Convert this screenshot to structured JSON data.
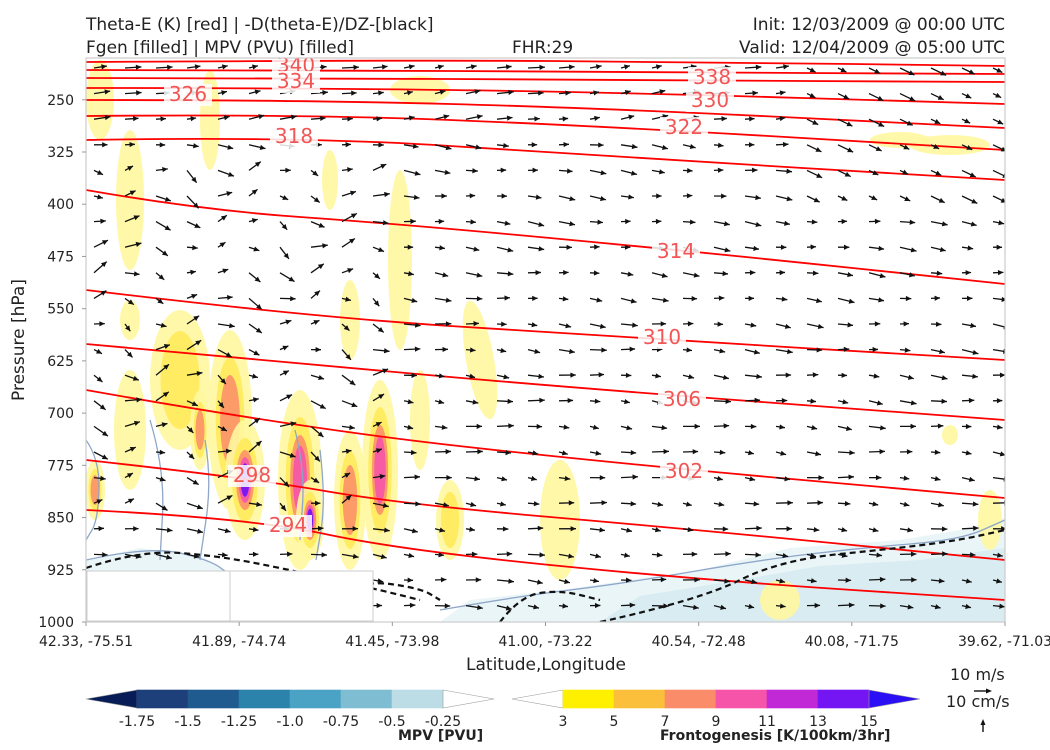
{
  "header": {
    "left_line1": "Theta-E (K) [red] | -D(theta-E)/DZ-[black]",
    "left_line2": "Fgen [filled] | MPV (PVU) [filled]",
    "center": "FHR:29",
    "init": "Init: 12/03/2009 @ 00:00 UTC",
    "valid": "Valid: 12/04/2009 @ 05:00 UTC"
  },
  "chart_data": {
    "type": "cross-section",
    "xlabel": "Latitude,Longitude",
    "ylabel": "Pressure [hPa]",
    "x_ticks": [
      "42.33, -75.51",
      "41.89, -74.74",
      "41.45, -73.98",
      "41.00, -73.22",
      "40.54, -72.48",
      "40.08, -71.75",
      "39.62, -71.03"
    ],
    "y_ticks": [
      250,
      325,
      400,
      475,
      550,
      625,
      700,
      775,
      850,
      925,
      1000
    ],
    "ylim": [
      1000,
      190
    ],
    "theta_e_labels": [
      "340",
      "334",
      "338",
      "330",
      "326",
      "322",
      "318",
      "314",
      "310",
      "306",
      "302",
      "298",
      "294"
    ],
    "theta_e_color": "#ff0000",
    "vector_color": "#111111",
    "mpv_colorbar": {
      "label": "MPV [PVU]",
      "ticks": [
        "-1.75",
        "-1.5",
        "-1.25",
        "-1.0",
        "-0.75",
        "-0.5",
        "-0.25"
      ],
      "colors": [
        "#081d58",
        "#1d3f7a",
        "#1f5b8e",
        "#2b83ab",
        "#4aa2c4",
        "#7fbdd3",
        "#bcdde6",
        "#ffffff"
      ]
    },
    "fgen_colorbar": {
      "label": "Frontogenesis [K/100km/3hr]",
      "ticks": [
        "3",
        "5",
        "7",
        "9",
        "11",
        "13",
        "15"
      ],
      "colors": [
        "#ffffff",
        "#fff000",
        "#fbbf3b",
        "#fb8c6a",
        "#f654a8",
        "#c129d7",
        "#7416f3",
        "#2b10f5"
      ]
    },
    "reference_vectors": {
      "horizontal": "10 m/s",
      "vertical": "10 cm/s"
    }
  }
}
